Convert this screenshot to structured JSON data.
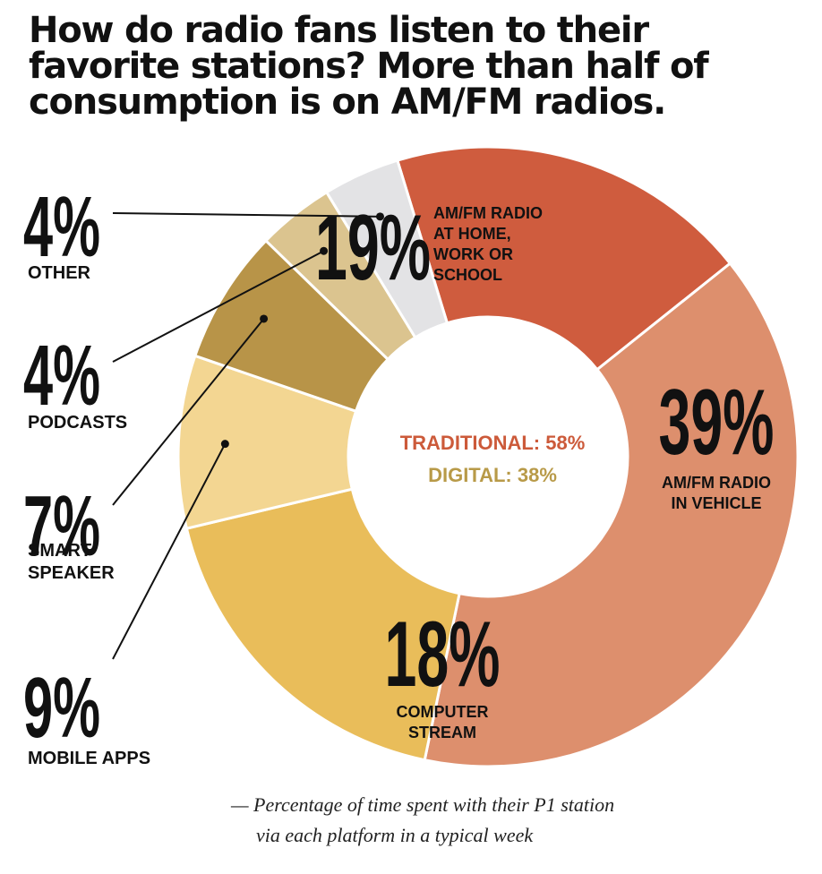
{
  "title_lines": [
    "How do radio fans listen to their",
    "favorite stations? More than half of",
    "consumption is on AM/FM radios."
  ],
  "center": {
    "traditional": "TRADITIONAL: 58%",
    "digital": "DIGITAL: 38%"
  },
  "note_lines": [
    "— Percentage of time spent with their P1 station",
    "via each platform in a typical week"
  ],
  "colors": {
    "traditional_text": "#cc5a3a",
    "digital_text": "#b89a48"
  },
  "chart_data": {
    "type": "pie",
    "donut": true,
    "slices": [
      {
        "pct_label": "19%",
        "label_lines": [
          "AM/FM RADIO",
          "AT HOME,",
          "WORK OR",
          "SCHOOL"
        ],
        "value": 19,
        "color": "#cf5c3e"
      },
      {
        "pct_label": "39%",
        "label_lines": [
          "AM/FM RADIO",
          "IN VEHICLE"
        ],
        "value": 39,
        "color": "#dd8f6d"
      },
      {
        "pct_label": "18%",
        "label_lines": [
          "COMPUTER",
          "STREAM"
        ],
        "value": 18,
        "color": "#e9bd5a"
      },
      {
        "pct_label": "9%",
        "label_lines": [
          "MOBILE APPS"
        ],
        "value": 9,
        "color": "#f3d692"
      },
      {
        "pct_label": "7%",
        "label_lines": [
          "SMART",
          "SPEAKER"
        ],
        "value": 7,
        "color": "#b89448"
      },
      {
        "pct_label": "4%",
        "label_lines": [
          "PODCASTS"
        ],
        "value": 4,
        "color": "#dbc48f"
      },
      {
        "pct_label": "4%",
        "label_lines": [
          "OTHER"
        ],
        "value": 4,
        "color": "#e3e3e5"
      }
    ]
  }
}
